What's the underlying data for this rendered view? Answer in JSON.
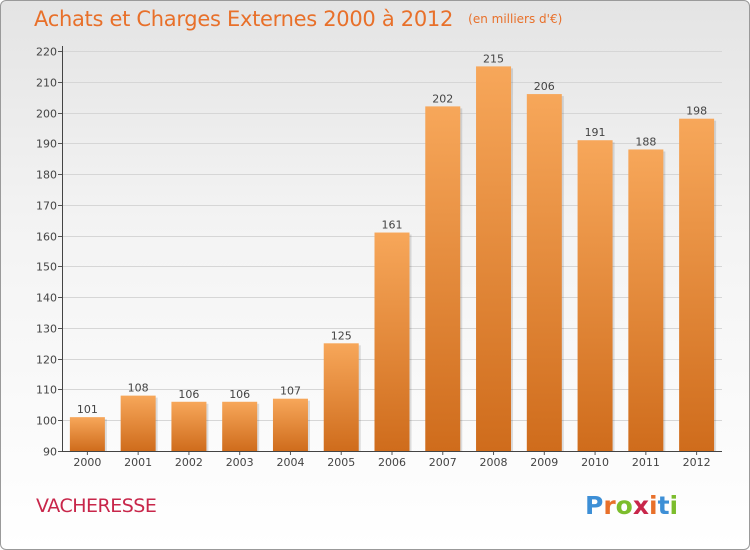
{
  "chart_data": {
    "type": "bar",
    "title": "Achats et Charges Externes 2000 à 2012",
    "subtitle": "(en milliers d'€)",
    "categories": [
      "2000",
      "2001",
      "2002",
      "2003",
      "2004",
      "2005",
      "2006",
      "2007",
      "2008",
      "2009",
      "2010",
      "2011",
      "2012"
    ],
    "values": [
      101,
      108,
      106,
      106,
      107,
      125,
      161,
      202,
      215,
      206,
      191,
      188,
      198
    ],
    "ylim": [
      90,
      220
    ],
    "yticks": [
      90,
      100,
      110,
      120,
      130,
      140,
      150,
      160,
      170,
      180,
      190,
      200,
      210,
      220
    ],
    "grid": true,
    "bar_color_top": "#f7a75a",
    "bar_color_bottom": "#cf6c1c"
  },
  "commune": "VACHERESSE",
  "logo": {
    "text": "Proxiti",
    "letter_colors": [
      "#3d8fd6",
      "#e8702a",
      "#7cbd2c",
      "#c8264a",
      "#e8702a",
      "#3d8fd6",
      "#7cbd2c"
    ]
  }
}
